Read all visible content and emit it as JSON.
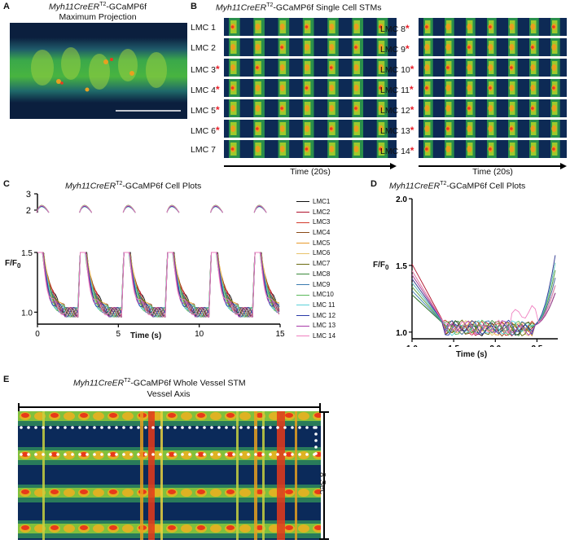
{
  "panelA": {
    "letter": "A",
    "title_italic": "Myh11CreER",
    "title_sup": "T2",
    "title_rest": "-GCaMP6f",
    "subtitle": "Maximum Projection"
  },
  "panelB": {
    "letter": "B",
    "title_italic": "Myh11CreER",
    "title_sup": "T2",
    "title_rest": "-GCaMP6f Single Cell STMs",
    "left_labels": [
      "LMC 1",
      "LMC 2",
      "LMC 3",
      "LMC 4",
      "LMC 5",
      "LMC 6",
      "LMC 7"
    ],
    "left_stars": [
      false,
      false,
      true,
      true,
      true,
      true,
      false
    ],
    "right_labels": [
      "LMC 8",
      "LMC 9",
      "LMC 10",
      "LMC 11",
      "LMC 12",
      "LMC 13",
      "LMC 14"
    ],
    "right_stars": [
      true,
      true,
      true,
      true,
      true,
      true,
      true
    ],
    "star": "*",
    "time_label": "Time (20s)"
  },
  "panelC": {
    "letter": "C",
    "title_italic": "Myh11CreER",
    "title_sup": "T2",
    "title_rest": "-GCaMP6f  Cell Plots",
    "ylabel": "F/F",
    "ylabel_sub": "0",
    "xlabel": "Time (s)",
    "upper_ticks": [
      "3",
      "2"
    ],
    "lower_ticks": [
      "1.5",
      "1.0"
    ],
    "xticks": [
      "0",
      "5",
      "10",
      "15"
    ],
    "legend": [
      "LMC1",
      "LMC2",
      "LMC3",
      "LMC4",
      "LMC5",
      "LMC6",
      "LMC7",
      "LMC8",
      "LMC9",
      "LMC10",
      "LMC 11",
      "LMC 12",
      "LMC 13",
      "LMC 14"
    ],
    "colors": [
      "#111111",
      "#b0122b",
      "#d33a2b",
      "#8a4a16",
      "#e89a2a",
      "#e8c36a",
      "#6a6a10",
      "#3a8a3a",
      "#3a7ab0",
      "#5ab85a",
      "#5ad0d8",
      "#2a3aa8",
      "#a83aa8",
      "#f080c0"
    ]
  },
  "panelD": {
    "letter": "D",
    "title_italic": "Myh11CreER",
    "title_sup": "T2",
    "title_rest": "-GCaMP6f  Cell Plots",
    "ylabel": "F/F",
    "ylabel_sub": "0",
    "xlabel": "Time (s)",
    "yticks": [
      "2.0",
      "1.5",
      "1.0"
    ],
    "xticks": [
      "1.0",
      "1.5",
      "2.0",
      "2.5"
    ]
  },
  "panelE": {
    "letter": "E",
    "title_italic": "Myh11CreER",
    "title_sup": "T2",
    "title_rest": "-GCaMP6f  Whole Vessel STM",
    "axis_label": "Vessel Axis",
    "time_label": "8 Sec"
  }
}
